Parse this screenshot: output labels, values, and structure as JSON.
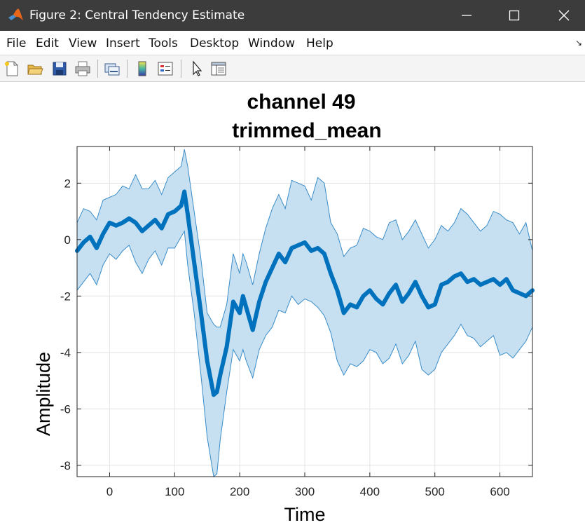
{
  "window": {
    "title": "Figure 2: Central Tendency Estimate",
    "app_icon": "matlab-logo-icon",
    "controls": [
      "minimize-icon",
      "maximize-icon",
      "close-icon"
    ]
  },
  "menu": {
    "items": [
      "File",
      "Edit",
      "View",
      "Insert",
      "Tools",
      "Desktop",
      "Window",
      "Help"
    ],
    "overflow_icon": "menu-overflow-arrow-icon"
  },
  "toolbar": {
    "tools": [
      "new-figure-icon",
      "open-file-icon",
      "save-icon",
      "print-icon",
      "link-plot-icon",
      "colorbar-icon",
      "legend-icon",
      "edit-plot-pointer-icon",
      "property-inspector-icon"
    ]
  },
  "chart_data": {
    "type": "area",
    "title": "channel 49",
    "subtitle": "trimmed_mean",
    "xlabel": "Time",
    "ylabel": "Amplitude",
    "xlim": [
      -50,
      650
    ],
    "ylim": [
      -8.4,
      3.3
    ],
    "xticks": [
      0,
      100,
      200,
      300,
      400,
      500,
      600
    ],
    "yticks": [
      -8,
      -6,
      -4,
      -2,
      0,
      2
    ],
    "xtick_labels": [
      "0",
      "100",
      "200",
      "300",
      "400",
      "500",
      "600"
    ],
    "ytick_labels": [
      "-8",
      "-6",
      "-4",
      "-2",
      "0",
      "2"
    ],
    "grid": true,
    "colors": {
      "line": "#0072bd",
      "band_fill": "#c6e0f1",
      "band_edge": "#3a8cc8"
    },
    "x": [
      -50,
      -40,
      -30,
      -20,
      -10,
      0,
      10,
      20,
      30,
      40,
      50,
      60,
      70,
      80,
      90,
      100,
      110,
      115,
      120,
      130,
      140,
      150,
      160,
      165,
      170,
      180,
      190,
      200,
      205,
      210,
      220,
      230,
      240,
      250,
      260,
      270,
      280,
      290,
      300,
      310,
      320,
      330,
      340,
      350,
      360,
      370,
      380,
      390,
      400,
      410,
      420,
      430,
      440,
      450,
      460,
      470,
      480,
      490,
      500,
      510,
      520,
      530,
      540,
      550,
      560,
      570,
      580,
      590,
      600,
      610,
      620,
      630,
      640,
      650
    ],
    "series": [
      {
        "role": "central line",
        "values": [
          -0.4,
          -0.1,
          0.1,
          -0.3,
          0.2,
          0.6,
          0.5,
          0.6,
          0.75,
          0.6,
          0.3,
          0.5,
          0.7,
          0.4,
          0.9,
          1.0,
          1.2,
          1.7,
          0.9,
          -0.8,
          -2.5,
          -4.3,
          -5.5,
          -5.4,
          -4.8,
          -3.8,
          -2.2,
          -2.6,
          -2.0,
          -2.4,
          -3.2,
          -2.2,
          -1.5,
          -1.0,
          -0.5,
          -0.8,
          -0.3,
          -0.2,
          -0.1,
          -0.4,
          -0.3,
          -0.5,
          -1.2,
          -1.8,
          -2.6,
          -2.3,
          -2.4,
          -2.0,
          -1.8,
          -2.1,
          -2.3,
          -1.9,
          -1.6,
          -2.2,
          -1.9,
          -1.5,
          -2.0,
          -2.4,
          -2.3,
          -1.6,
          -1.5,
          -1.3,
          -1.2,
          -1.5,
          -1.4,
          -1.6,
          -1.5,
          -1.4,
          -1.6,
          -1.4,
          -1.8,
          -1.9,
          -2.0,
          -1.8
        ]
      },
      {
        "role": "upper bound",
        "values": [
          0.6,
          1.1,
          1.0,
          0.7,
          1.4,
          1.5,
          1.6,
          1.9,
          1.8,
          2.3,
          1.8,
          1.8,
          2.1,
          1.6,
          2.2,
          2.4,
          2.6,
          3.2,
          2.6,
          1.0,
          -0.6,
          -2.6,
          -3.0,
          -3.1,
          -3.1,
          -2.3,
          -0.5,
          -1.2,
          -0.5,
          -0.8,
          -1.6,
          -0.5,
          0.4,
          1.1,
          1.6,
          1.1,
          2.1,
          2.0,
          1.9,
          1.4,
          2.2,
          2.0,
          0.6,
          0.2,
          -0.6,
          -0.3,
          -0.2,
          0.4,
          0.3,
          0.1,
          0.0,
          0.6,
          0.7,
          0.0,
          0.3,
          0.7,
          0.2,
          -0.3,
          0.0,
          0.5,
          0.3,
          0.6,
          1.1,
          0.9,
          0.6,
          0.3,
          0.5,
          1.0,
          0.9,
          0.7,
          0.6,
          0.2,
          0.6,
          -0.4
        ]
      },
      {
        "role": "lower bound",
        "values": [
          -1.8,
          -1.5,
          -1.2,
          -1.6,
          -0.9,
          -0.5,
          -0.7,
          -0.4,
          -0.2,
          -0.8,
          -1.2,
          -0.7,
          -0.4,
          -0.9,
          -0.3,
          -0.3,
          0.1,
          0.3,
          -0.9,
          -2.6,
          -4.7,
          -7.0,
          -8.4,
          -8.3,
          -7.1,
          -5.4,
          -3.9,
          -4.3,
          -3.9,
          -4.3,
          -4.9,
          -3.9,
          -3.4,
          -3.1,
          -2.5,
          -2.6,
          -2.0,
          -2.3,
          -2.1,
          -2.2,
          -2.4,
          -2.7,
          -3.3,
          -4.3,
          -4.8,
          -4.4,
          -4.5,
          -4.3,
          -3.9,
          -4.0,
          -4.4,
          -4.2,
          -3.7,
          -4.4,
          -4.1,
          -3.6,
          -4.6,
          -4.8,
          -4.6,
          -4.0,
          -3.7,
          -3.4,
          -3.0,
          -3.4,
          -3.5,
          -3.8,
          -3.6,
          -3.4,
          -4.1,
          -4.0,
          -4.2,
          -3.9,
          -3.6,
          -3.1
        ]
      }
    ]
  }
}
